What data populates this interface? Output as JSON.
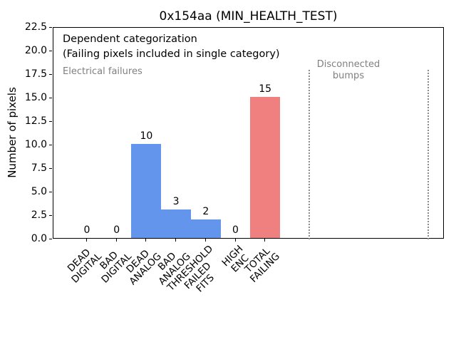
{
  "figure": {
    "title": "0x154aa (MIN_HEALTH_TEST)",
    "ylabel": "Number of pixels"
  },
  "annotations": {
    "dependent_line1": "Dependent categorization",
    "dependent_line2": "(Failing pixels included in single category)",
    "electrical": "Electrical failures",
    "disconnected_line1": "Disconnected",
    "disconnected_line2": "bumps"
  },
  "colors": {
    "bar_blue": "#6495ED",
    "bar_red": "#F08080",
    "gray_text": "#808080",
    "dotted_line": "#8c8c8c",
    "axis": "#000000"
  },
  "chart_data": {
    "type": "bar",
    "title": "0x154aa (MIN_HEALTH_TEST)",
    "xlabel": "",
    "ylabel": "Number of pixels",
    "categories": [
      "DEAD\nDIGITAL",
      "BAD\nDIGITAL",
      "DEAD\nANALOG",
      "BAD\nANALOG",
      "THRESHOLD\nFAILED\nFITS",
      "HIGH\nENC",
      "TOTAL\nFAILING"
    ],
    "values": [
      0,
      0,
      10,
      3,
      2,
      0,
      15
    ],
    "bar_labels": [
      "0",
      "0",
      "10",
      "3",
      "2",
      "0",
      "15"
    ],
    "bar_colors": [
      "#6495ED",
      "#6495ED",
      "#6495ED",
      "#6495ED",
      "#6495ED",
      "#6495ED",
      "#F08080"
    ],
    "ylim": [
      0,
      22.5
    ],
    "yticks": [
      0.0,
      2.5,
      5.0,
      7.5,
      10.0,
      12.5,
      15.0,
      17.5,
      20.0,
      22.5
    ],
    "grid": "off",
    "legend": "none",
    "text_annotations": [
      "Dependent categorization",
      "(Failing pixels included in single category)",
      "Electrical failures",
      "Disconnected bumps"
    ],
    "region_markers": {
      "style": "dotted vertical lines",
      "color": "#8c8c8c",
      "label": "Disconnected bumps",
      "note": "two dotted vertical lines right of TOTAL FAILING bar delimiting an empty region"
    }
  }
}
